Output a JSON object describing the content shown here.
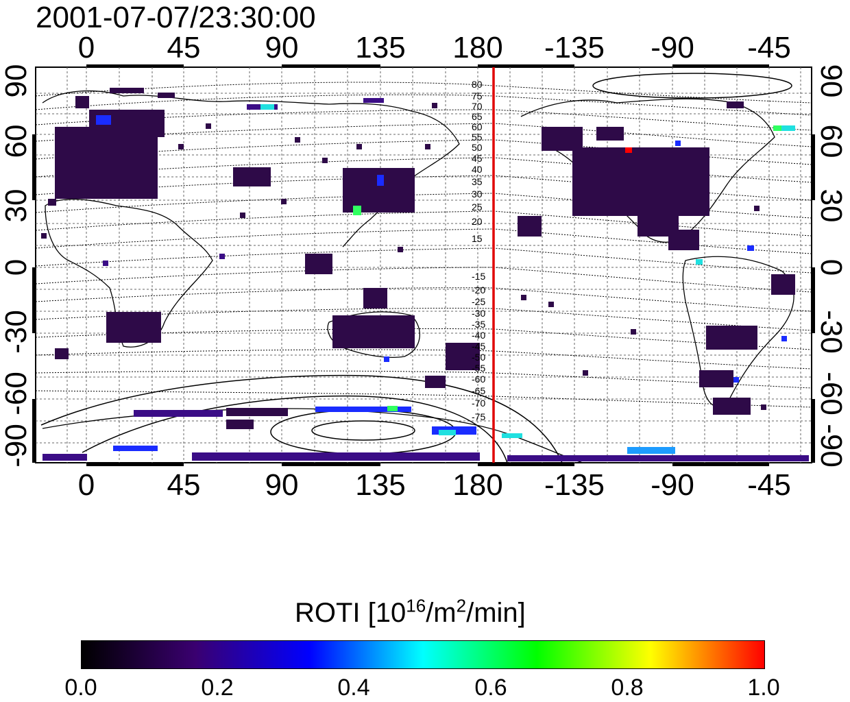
{
  "title": "2001-07-07/23:30:00",
  "x_axis": {
    "tick_labels": [
      "0",
      "45",
      "90",
      "135",
      "180",
      "-135",
      "-90",
      "-45"
    ]
  },
  "y_axis": {
    "left_tick_labels": [
      "90",
      "60",
      "30",
      "0",
      "-30",
      "-60",
      "-90"
    ],
    "right_tick_labels": [
      "90",
      "60",
      "30",
      "0",
      "-30",
      "-60",
      "-90"
    ]
  },
  "contour_labels_north": [
    "80",
    "75",
    "70",
    "65",
    "60",
    "55",
    "50",
    "45",
    "40",
    "35",
    "30",
    "25",
    "20",
    "15"
  ],
  "contour_labels_south": [
    "-15",
    "-20",
    "-25",
    "-30",
    "-35",
    "-40",
    "-45",
    "-50",
    "-55",
    "-60",
    "-65",
    "-70",
    "-75"
  ],
  "colorbar": {
    "title_prefix": "ROTI  [10",
    "title_exp1": "16",
    "title_mid": "/m",
    "title_exp2": "2",
    "title_suffix": "/min]",
    "tick_labels": [
      "0.0",
      "0.2",
      "0.4",
      "0.6",
      "0.8",
      "1.0"
    ],
    "range": [
      0.0,
      1.0
    ],
    "colors": [
      "#000000",
      "#3a0070",
      "#0000ff",
      "#00ffff",
      "#00ff00",
      "#ffff00",
      "#ff0000"
    ]
  },
  "colors": {
    "meridian_marker": "#e00000",
    "low_roti": "#2e0a48",
    "mid_low_roti": "#3b0d86",
    "medium_roti": "#1a2cff",
    "cyan_roti": "#20e0e0",
    "green_roti": "#30ff60",
    "high_roti": "#ff0000"
  }
}
